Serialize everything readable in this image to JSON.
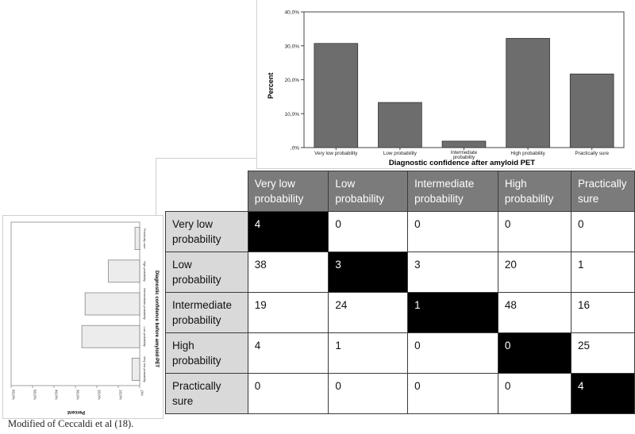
{
  "chart_data": [
    {
      "type": "bar",
      "orientation": "vertical",
      "categories": [
        "Very low probability",
        "Low probability",
        "Intermediate probability",
        "High probability",
        "Practically sure"
      ],
      "values": [
        30.7,
        13.3,
        1.9,
        32.2,
        21.7
      ],
      "xlabel": "Diagnostic confidence after amyloid PET",
      "ylabel": "Percent",
      "yticks": [
        ",0%",
        "10,0%",
        "20,0%",
        "30,0%",
        "40,0%"
      ],
      "ylim": [
        0,
        40
      ],
      "grid": false,
      "bar_color": "#6d6d6d"
    },
    {
      "type": "bar",
      "orientation": "horizontal-rotated",
      "categories": [
        "Very low probability",
        "Low probability",
        "Intermediate probability",
        "High probability",
        "Practically sure"
      ],
      "values": [
        3.6,
        27.0,
        25.5,
        14.6,
        2.2
      ],
      "xlabel": "Diagnostic confidence before amyloid-PET",
      "ylabel": "Percent",
      "yticks": [
        ",0%",
        "10,0%",
        "20,0%",
        "30,0%",
        "40,0%",
        "50,0%",
        "60,0%"
      ],
      "ylim": [
        0,
        60
      ],
      "grid": false,
      "bar_color": "#ececec"
    }
  ],
  "matrix": {
    "col_headers": [
      "Very low probability",
      " Low probability",
      "Intermediate probability",
      "High probability",
      "Practically sure"
    ],
    "rows": [
      {
        "label": "Very low probability",
        "cells": [
          "4",
          "0",
          "0",
          "0",
          "0"
        ]
      },
      {
        "label": "Low probability",
        "cells": [
          "38",
          "3",
          "3",
          "20",
          "1"
        ]
      },
      {
        "label": "Intermediate probability",
        "cells": [
          "19",
          "24",
          "1",
          "48",
          "16"
        ]
      },
      {
        "label": "High probability",
        "cells": [
          "4",
          "1",
          "0",
          "0",
          "25"
        ]
      },
      {
        "label": "Practically sure",
        "cells": [
          "0",
          "0",
          "0",
          "0",
          "4"
        ]
      }
    ],
    "colors": {
      "col_header": "#7b7b7b",
      "row_header": "#d9d9d9",
      "diagonal": "#000000"
    }
  },
  "caption": "Modified of Ceccaldi et al (18)."
}
